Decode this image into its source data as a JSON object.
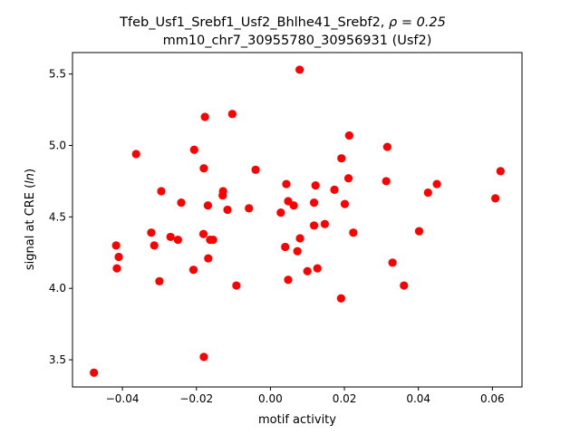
{
  "chart_data": {
    "type": "scatter",
    "title_line1": "Tfeb_Usf1_Srebf1_Usf2_Bhlhe41_Srebf2, ",
    "title_rho": "ρ = 0.25",
    "title_line2": "mm10_chr7_30955780_30956931 (Usf2)",
    "xlabel": "motif activity",
    "ylabel_prefix": "signal at CRE (",
    "ylabel_ital": "ln",
    "ylabel_suffix": ")",
    "xlim": [
      -0.0535,
      0.068
    ],
    "ylim": [
      3.31,
      5.65
    ],
    "xticks": [
      -0.04,
      -0.02,
      0.0,
      0.02,
      0.04,
      0.06
    ],
    "xtick_labels": [
      "−0.04",
      "−0.02",
      "0.00",
      "0.02",
      "0.04",
      "0.06"
    ],
    "yticks": [
      3.5,
      4.0,
      4.5,
      5.0,
      5.5
    ],
    "ytick_labels": [
      "3.5",
      "4.0",
      "4.5",
      "5.0",
      "5.5"
    ],
    "grid": false,
    "marker_color": "#ff0000",
    "points": [
      {
        "x": -0.0477,
        "y": 3.41
      },
      {
        "x": -0.0417,
        "y": 4.3
      },
      {
        "x": -0.0415,
        "y": 4.14
      },
      {
        "x": -0.041,
        "y": 4.22
      },
      {
        "x": -0.0363,
        "y": 4.94
      },
      {
        "x": -0.0322,
        "y": 4.39
      },
      {
        "x": -0.0314,
        "y": 4.3
      },
      {
        "x": -0.03,
        "y": 4.05
      },
      {
        "x": -0.0295,
        "y": 4.68
      },
      {
        "x": -0.027,
        "y": 4.36
      },
      {
        "x": -0.025,
        "y": 4.34
      },
      {
        "x": -0.0241,
        "y": 4.6
      },
      {
        "x": -0.0208,
        "y": 4.13
      },
      {
        "x": -0.0206,
        "y": 4.97
      },
      {
        "x": -0.018,
        "y": 4.84
      },
      {
        "x": -0.0181,
        "y": 4.38
      },
      {
        "x": -0.0177,
        "y": 5.2
      },
      {
        "x": -0.018,
        "y": 3.52
      },
      {
        "x": -0.0169,
        "y": 4.58
      },
      {
        "x": -0.0168,
        "y": 4.21
      },
      {
        "x": -0.0163,
        "y": 4.34
      },
      {
        "x": -0.0155,
        "y": 4.34
      },
      {
        "x": -0.0128,
        "y": 4.68
      },
      {
        "x": -0.0129,
        "y": 4.65
      },
      {
        "x": -0.0116,
        "y": 4.55
      },
      {
        "x": -0.0103,
        "y": 5.22
      },
      {
        "x": -0.0092,
        "y": 4.02
      },
      {
        "x": -0.0058,
        "y": 4.56
      },
      {
        "x": -0.004,
        "y": 4.83
      },
      {
        "x": 0.0028,
        "y": 4.53
      },
      {
        "x": 0.004,
        "y": 4.29
      },
      {
        "x": 0.0043,
        "y": 4.73
      },
      {
        "x": 0.0048,
        "y": 4.61
      },
      {
        "x": 0.0048,
        "y": 4.06
      },
      {
        "x": 0.0063,
        "y": 4.58
      },
      {
        "x": 0.0073,
        "y": 4.26
      },
      {
        "x": 0.0079,
        "y": 5.53
      },
      {
        "x": 0.008,
        "y": 4.35
      },
      {
        "x": 0.01,
        "y": 4.12
      },
      {
        "x": 0.0118,
        "y": 4.44
      },
      {
        "x": 0.0118,
        "y": 4.6
      },
      {
        "x": 0.0122,
        "y": 4.72
      },
      {
        "x": 0.0127,
        "y": 4.14
      },
      {
        "x": 0.0147,
        "y": 4.45
      },
      {
        "x": 0.0173,
        "y": 4.69
      },
      {
        "x": 0.0191,
        "y": 3.93
      },
      {
        "x": 0.0192,
        "y": 4.91
      },
      {
        "x": 0.0201,
        "y": 4.59
      },
      {
        "x": 0.0211,
        "y": 4.77
      },
      {
        "x": 0.0213,
        "y": 5.07
      },
      {
        "x": 0.0224,
        "y": 4.39
      },
      {
        "x": 0.0313,
        "y": 4.75
      },
      {
        "x": 0.0316,
        "y": 4.99
      },
      {
        "x": 0.033,
        "y": 4.18
      },
      {
        "x": 0.0361,
        "y": 4.02
      },
      {
        "x": 0.0402,
        "y": 4.4
      },
      {
        "x": 0.0426,
        "y": 4.67
      },
      {
        "x": 0.045,
        "y": 4.73
      },
      {
        "x": 0.0608,
        "y": 4.63
      },
      {
        "x": 0.0622,
        "y": 4.82
      }
    ]
  }
}
